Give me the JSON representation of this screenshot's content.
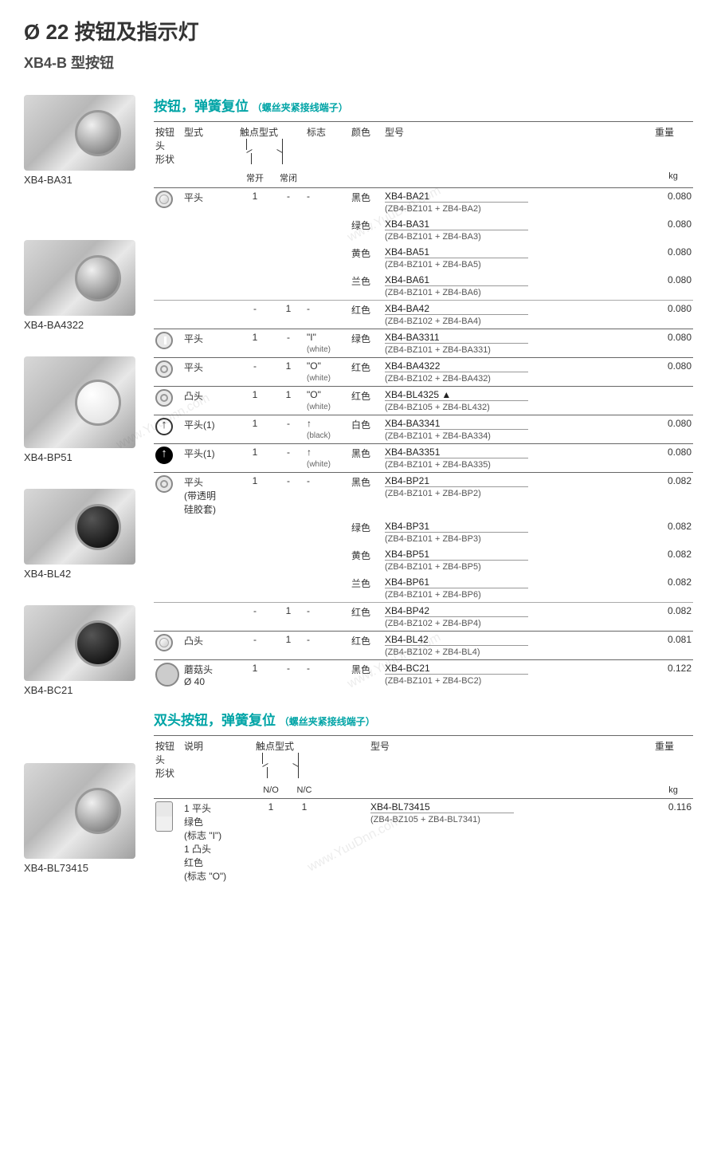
{
  "page": {
    "title": "Ø 22 按钮及指示灯",
    "subtitle": "XB4-B 型按钮"
  },
  "watermark": "www.YuuDnn.com",
  "left_products": [
    {
      "label": "XB4-BA31",
      "img_class": "img-box"
    },
    {
      "label": "XB4-BA4322",
      "img_class": "img-box"
    },
    {
      "label": "XB4-BP51",
      "img_class": "img-box white tall"
    },
    {
      "label": "XB4-BL42",
      "img_class": "img-box dark"
    },
    {
      "label": "XB4-BC21",
      "img_class": "img-box dark"
    },
    {
      "label": "XB4-BL73415",
      "img_class": "img-box double"
    }
  ],
  "section1": {
    "title": "按钮，弹簧复位",
    "title_paren": "（螺丝夹紧接线端子）",
    "headers": {
      "shape": "按钮头\n形状",
      "style": "型式",
      "contact": "触点型式",
      "mark": "标志",
      "color": "颜色",
      "model": "型号",
      "weight": "重量",
      "no": "常开",
      "nc": "常闭",
      "kg": "kg"
    },
    "rows": [
      {
        "sep": "strong",
        "shape": "flat",
        "style": "平头",
        "no": "1",
        "nc": "-",
        "mark": "-",
        "color": "黑色",
        "model": "XB4-BA21",
        "sub": "(ZB4-BZ101 + ZB4-BA2)",
        "weight": "0.080"
      },
      {
        "sep": "",
        "color": "绿色",
        "model": "XB4-BA31",
        "sub": "(ZB4-BZ101 + ZB4-BA3)",
        "weight": "0.080"
      },
      {
        "sep": "",
        "color": "黄色",
        "model": "XB4-BA51",
        "sub": "(ZB4-BZ101 + ZB4-BA5)",
        "weight": "0.080"
      },
      {
        "sep": "",
        "color": "兰色",
        "model": "XB4-BA61",
        "sub": "(ZB4-BZ101 + ZB4-BA6)",
        "weight": "0.080"
      },
      {
        "sep": "light",
        "style": "",
        "no": "-",
        "nc": "1",
        "mark": "-",
        "color": "红色",
        "model": "XB4-BA42",
        "sub": "(ZB4-BZ102 + ZB4-BA4)",
        "weight": "0.080"
      },
      {
        "sep": "strong",
        "shape": "bar",
        "style": "平头",
        "no": "1",
        "nc": "-",
        "mark": "\"I\"",
        "mark_sub": "(white)",
        "color": "绿色",
        "model": "XB4-BA3311",
        "sub": "(ZB4-BZ101 + ZB4-BA331)",
        "weight": "0.080"
      },
      {
        "sep": "strong",
        "shape": "ring",
        "style": "平头",
        "no": "-",
        "nc": "1",
        "mark": "\"O\"",
        "mark_sub": "(white)",
        "color": "红色",
        "model": "XB4-BA4322",
        "sub": "(ZB4-BZ102 + ZB4-BA432)",
        "weight": "0.080"
      },
      {
        "sep": "strong",
        "shape": "ring",
        "style": "凸头",
        "no": "1",
        "nc": "1",
        "mark": "\"O\"",
        "mark_sub": "(white)",
        "color": "红色",
        "model": "XB4-BL4325 ▲",
        "sub": "(ZB4-BZ105 + ZB4-BL432)",
        "weight": ""
      },
      {
        "sep": "strong",
        "shape": "arrow-w",
        "style": "平头(1)",
        "no": "1",
        "nc": "-",
        "mark": "↑",
        "mark_sub": "(black)",
        "color": "白色",
        "model": "XB4-BA3341",
        "sub": "(ZB4-BZ101 + ZB4-BA334)",
        "weight": "0.080"
      },
      {
        "sep": "strong",
        "shape": "arrow-b",
        "style": "平头(1)",
        "no": "1",
        "nc": "-",
        "mark": "↑",
        "mark_sub": "(white)",
        "color": "黑色",
        "model": "XB4-BA3351",
        "sub": "(ZB4-BZ101 + ZB4-BA335)",
        "weight": "0.080"
      },
      {
        "sep": "strong",
        "shape": "ring",
        "style": "平头\n(带透明\n硅胶套)",
        "no": "1",
        "nc": "-",
        "mark": "-",
        "color": "黑色",
        "model": "XB4-BP21",
        "sub": "(ZB4-BZ101 + ZB4-BP2)",
        "weight": "0.082"
      },
      {
        "sep": "",
        "color": "绿色",
        "model": "XB4-BP31",
        "sub": "(ZB4-BZ101 + ZB4-BP3)",
        "weight": "0.082"
      },
      {
        "sep": "",
        "color": "黄色",
        "model": "XB4-BP51",
        "sub": "(ZB4-BZ101 + ZB4-BP5)",
        "weight": "0.082"
      },
      {
        "sep": "",
        "color": "兰色",
        "model": "XB4-BP61",
        "sub": "(ZB4-BZ101 + ZB4-BP6)",
        "weight": "0.082"
      },
      {
        "sep": "light",
        "no": "-",
        "nc": "1",
        "mark": "-",
        "color": "红色",
        "model": "XB4-BP42",
        "sub": "(ZB4-BZ102 + ZB4-BP4)",
        "weight": "0.082"
      },
      {
        "sep": "strong",
        "shape": "flat",
        "style": "凸头",
        "no": "-",
        "nc": "1",
        "mark": "-",
        "color": "红色",
        "model": "XB4-BL42",
        "sub": "(ZB4-BZ102 + ZB4-BL4)",
        "weight": "0.081"
      },
      {
        "sep": "strong",
        "shape": "big",
        "style": "蘑菇头\nØ 40",
        "no": "1",
        "nc": "-",
        "mark": "-",
        "color": "黑色",
        "model": "XB4-BC21",
        "sub": "(ZB4-BZ101 + ZB4-BC2)",
        "weight": "0.122"
      }
    ]
  },
  "section2": {
    "title": "双头按钮，弹簧复位",
    "title_paren": "（螺丝夹紧接线端子）",
    "headers": {
      "shape": "按钮头\n形状",
      "desc": "说明",
      "contact": "触点型式",
      "model": "型号",
      "weight": "重量",
      "no": "N/O",
      "nc": "N/C",
      "kg": "kg"
    },
    "row": {
      "desc": "1 平头\n绿色\n(标志 \"I\")\n1 凸头\n红色\n(标志 \"O\")",
      "no": "1",
      "nc": "1",
      "model": "XB4-BL73415",
      "sub": "(ZB4-BZ105 + ZB4-BL7341)",
      "weight": "0.116"
    }
  },
  "colors": {
    "teal": "#00a4a6",
    "text": "#333333",
    "border_strong": "#666666",
    "border_light": "#aaaaaa",
    "background": "#ffffff"
  }
}
